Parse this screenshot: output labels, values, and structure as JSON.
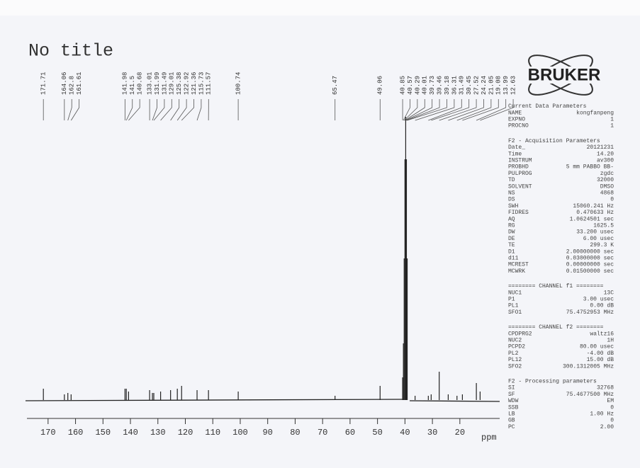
{
  "chart_data": {
    "type": "spectrum",
    "title": "No title",
    "x_label": "ppm",
    "x": [
      171.71,
      164.06,
      162.8,
      161.61,
      141.98,
      141.5,
      140.68,
      133.01,
      131.99,
      131.49,
      129.01,
      125.38,
      122.92,
      121.36,
      115.73,
      111.57,
      100.74,
      65.47,
      49.06,
      40.85,
      40.57,
      40.29,
      40.01,
      39.73,
      39.46,
      39.18,
      36.31,
      31.49,
      30.45,
      27.52,
      24.24,
      21.05,
      19.08,
      13.99,
      12.63
    ],
    "values": [
      4,
      2,
      2.5,
      2,
      4,
      4,
      3,
      3.5,
      2.5,
      2.5,
      3,
      3.5,
      4,
      5,
      3.5,
      3.5,
      3,
      1.5,
      5,
      8,
      20,
      50,
      85,
      100,
      85,
      50,
      1.5,
      1.5,
      2,
      10,
      2,
      1.5,
      2,
      6,
      3
    ],
    "xlim": [
      177.7,
      5.5
    ],
    "xticks": [
      170,
      160,
      150,
      140,
      130,
      120,
      110,
      100,
      90,
      80,
      70,
      60,
      50,
      40,
      30,
      20
    ],
    "ylim": [
      0,
      100
    ],
    "color": "#222222"
  },
  "panel": {
    "logo": "BRUKER",
    "sections": [
      {
        "title": "Current Data Parameters",
        "rows": [
          [
            "NAME",
            "kongfanpeng"
          ],
          [
            "EXPNO",
            "1"
          ],
          [
            "PROCNO",
            "1"
          ]
        ]
      },
      {
        "title": "F2 - Acquisition Parameters",
        "rows": [
          [
            "Date_",
            "20121231"
          ],
          [
            "Time",
            "14.20"
          ],
          [
            "INSTRUM",
            "av300"
          ],
          [
            "PROBHD",
            "5 mm PABBO BB-"
          ],
          [
            "PULPROG",
            "zgdc"
          ],
          [
            "TD",
            "32000"
          ],
          [
            "SOLVENT",
            "DMSO"
          ],
          [
            "NS",
            "4868"
          ],
          [
            "DS",
            "0"
          ],
          [
            "SWH",
            "15060.241 Hz"
          ],
          [
            "FIDRES",
            "0.470633 Hz"
          ],
          [
            "AQ",
            "1.0624501 sec"
          ],
          [
            "RG",
            "1625.5"
          ],
          [
            "DW",
            "33.200 usec"
          ],
          [
            "DE",
            "6.00 usec"
          ],
          [
            "TE",
            "299.3 K"
          ],
          [
            "D1",
            "2.00000000 sec"
          ],
          [
            "d11",
            "0.03000000 sec"
          ],
          [
            "MCREST",
            "0.00000000 sec"
          ],
          [
            "MCWRK",
            "0.01500000 sec"
          ]
        ]
      },
      {
        "title": "======== CHANNEL f1 ========",
        "rows": [
          [
            "NUC1",
            "13C"
          ],
          [
            "P1",
            "3.00 usec"
          ],
          [
            "PL1",
            "0.00 dB"
          ],
          [
            "SFO1",
            "75.4752953 MHz"
          ]
        ]
      },
      {
        "title": "======== CHANNEL f2 ========",
        "rows": [
          [
            "CPDPRG2",
            "waltz16"
          ],
          [
            "NUC2",
            "1H"
          ],
          [
            "PCPD2",
            "80.00 usec"
          ],
          [
            "PL2",
            "-4.00 dB"
          ],
          [
            "PL12",
            "15.00 dB"
          ],
          [
            "SFO2",
            "300.1312005 MHz"
          ]
        ]
      },
      {
        "title": "F2 - Processing parameters",
        "rows": [
          [
            "SI",
            "32768"
          ],
          [
            "SF",
            "75.4677500 MHz"
          ],
          [
            "WDW",
            "EM"
          ],
          [
            "SSB",
            "0"
          ],
          [
            "LB",
            "1.00 Hz"
          ],
          [
            "GB",
            "0"
          ],
          [
            "PC",
            "2.00"
          ]
        ]
      }
    ]
  }
}
